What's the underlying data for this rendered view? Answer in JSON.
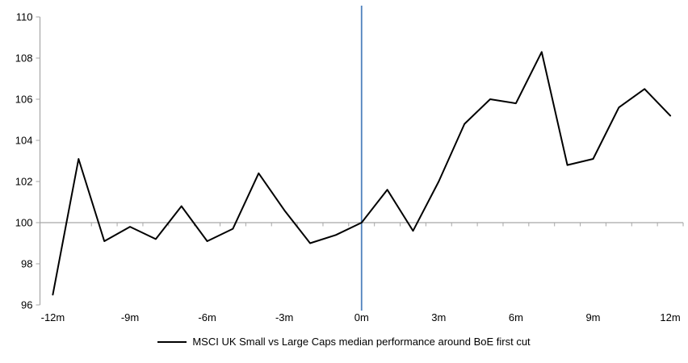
{
  "chart_data": {
    "type": "line",
    "legend": "MSCI UK Small vs Large Caps median performance around BoE first cut",
    "legend_position": "bottom",
    "x_months": [
      -12,
      -11,
      -10,
      -9,
      -8,
      -7,
      -6,
      -5,
      -4,
      -3,
      -2,
      -1,
      0,
      1,
      2,
      3,
      4,
      5,
      6,
      7,
      8,
      9,
      10,
      11,
      12
    ],
    "series": [
      {
        "name": "MSCI UK Small vs Large Caps median performance around BoE first cut",
        "values": [
          96.5,
          103.1,
          99.1,
          99.8,
          99.2,
          100.8,
          99.1,
          99.7,
          102.4,
          100.6,
          99.0,
          99.4,
          100.0,
          101.6,
          99.6,
          102.0,
          104.8,
          106.0,
          105.8,
          108.3,
          102.8,
          103.1,
          105.6,
          106.5,
          105.2
        ]
      }
    ],
    "x_tick_labels": [
      {
        "month": -12,
        "label": "-12m"
      },
      {
        "month": -9,
        "label": "-9m"
      },
      {
        "month": -6,
        "label": "-6m"
      },
      {
        "month": -3,
        "label": "-3m"
      },
      {
        "month": 0,
        "label": "0m"
      },
      {
        "month": 3,
        "label": "3m"
      },
      {
        "month": 6,
        "label": "6m"
      },
      {
        "month": 9,
        "label": "9m"
      },
      {
        "month": 12,
        "label": "12m"
      }
    ],
    "y_ticks": [
      96,
      98,
      100,
      102,
      104,
      106,
      108,
      110
    ],
    "ylim": [
      96,
      110
    ],
    "xlim": [
      -12.5,
      12.5
    ],
    "baseline_value": 100,
    "event_line_x": 0,
    "grid": "baseline-only",
    "colors": {
      "series_line": "#000000",
      "event_line": "#4f81bd",
      "axis": "#a6a6a6",
      "text": "#000000",
      "background": "#ffffff"
    }
  }
}
